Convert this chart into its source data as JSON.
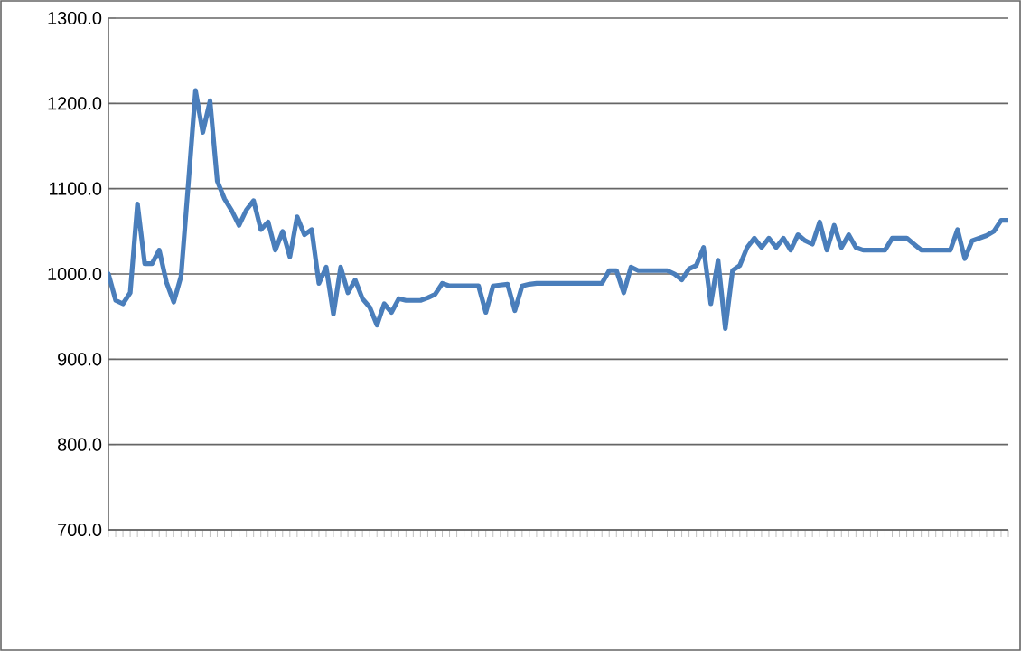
{
  "chart_data": {
    "type": "line",
    "color": "#4a7ebb",
    "line_style": "solid",
    "marker": "none",
    "grid": "y",
    "tick_labels": "y",
    "ylim": [
      700,
      1300
    ],
    "yticks": [
      {
        "value": 700,
        "label": "700.0"
      },
      {
        "value": 800,
        "label": "800.0"
      },
      {
        "value": 900,
        "label": "900.0"
      },
      {
        "value": 1000,
        "label": "1000.0"
      },
      {
        "value": 1100,
        "label": "1100.0"
      },
      {
        "value": 1200,
        "label": "1200.0"
      },
      {
        "value": 1300,
        "label": "1300.0"
      }
    ],
    "categories": [
      null,
      null,
      null,
      null,
      null,
      null,
      null,
      null,
      null,
      null,
      null,
      null,
      null,
      null,
      null,
      null,
      null,
      null,
      null,
      null,
      null,
      null,
      null,
      null,
      null,
      null,
      null,
      null,
      null,
      null,
      null,
      null,
      null,
      null,
      null,
      null,
      null,
      null,
      null,
      null,
      null,
      null,
      null,
      null,
      null,
      null,
      null,
      null,
      null,
      null,
      null,
      null,
      null,
      null,
      null,
      null,
      null,
      null,
      null,
      null,
      null,
      null,
      null,
      null,
      null,
      null,
      null,
      null,
      null,
      null,
      null,
      null,
      null,
      null,
      null,
      null,
      null,
      null,
      null,
      null,
      null,
      null,
      null,
      null,
      null,
      null,
      null,
      null,
      null,
      null,
      null,
      null,
      null,
      null,
      null,
      null,
      null,
      null,
      null,
      null,
      null,
      null,
      null,
      null,
      null,
      null,
      null,
      null,
      null,
      null,
      null,
      null,
      null,
      null,
      null,
      null,
      null,
      null,
      null,
      null,
      null,
      null,
      null,
      null,
      null
    ],
    "values": [
      1000,
      969,
      965,
      978,
      1082,
      1012,
      1012,
      1028,
      990,
      967,
      997,
      1105,
      1215,
      1166,
      1203,
      1109,
      1088,
      1074,
      1057,
      1075,
      1086,
      1052,
      1061,
      1028,
      1050,
      1020,
      1067,
      1046,
      1052,
      989,
      1008,
      953,
      1008,
      978,
      993,
      971,
      961,
      940,
      965,
      955,
      971,
      969,
      969,
      969,
      972,
      976,
      989,
      986,
      986,
      986,
      986,
      986,
      955,
      986,
      987,
      988,
      957,
      986,
      988,
      989,
      989,
      989,
      989,
      989,
      989,
      989,
      989,
      989,
      989,
      1004,
      1004,
      978,
      1008,
      1004,
      1004,
      1004,
      1004,
      1004,
      1000,
      993,
      1006,
      1010,
      1031,
      965,
      1016,
      936,
      1004,
      1010,
      1031,
      1042,
      1031,
      1042,
      1031,
      1042,
      1028,
      1046,
      1039,
      1035,
      1061,
      1028,
      1057,
      1031,
      1046,
      1031,
      1028,
      1028,
      1028,
      1028,
      1042,
      1042,
      1042,
      1035,
      1028,
      1028,
      1028,
      1028,
      1028,
      1052,
      1018,
      1039,
      1042,
      1045,
      1050,
      1063,
      1063
    ]
  }
}
